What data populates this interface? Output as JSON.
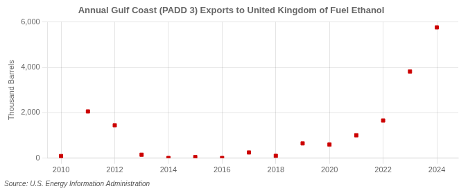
{
  "chart_data": {
    "type": "scatter",
    "title": "Annual Gulf Coast (PADD 3) Exports to United Kingdom of Fuel Ethanol",
    "y_label": "Thousand Barrels",
    "annotations": [
      "Source: U.S. Energy Information Administration"
    ],
    "x": [
      2010,
      2011,
      2012,
      2013,
      2014,
      2015,
      2016,
      2017,
      2018,
      2019,
      2020,
      2021,
      2022,
      2023,
      2024
    ],
    "values": [
      95,
      2060,
      1450,
      155,
      10,
      50,
      10,
      255,
      105,
      655,
      600,
      1010,
      1660,
      3820,
      5760
    ],
    "color": "#cc0000",
    "marker": "square",
    "xlim": [
      2009.5,
      2024.8
    ],
    "xticks": [
      2010,
      2012,
      2014,
      2016,
      2018,
      2020,
      2022,
      2024
    ],
    "ylim": [
      0,
      6000
    ],
    "yticks": [
      0,
      {
        "value": 2000,
        "label": "2,000"
      },
      {
        "value": 4000,
        "label": "4,000"
      },
      {
        "value": 6000,
        "label": "6,000"
      }
    ],
    "grid": true
  }
}
